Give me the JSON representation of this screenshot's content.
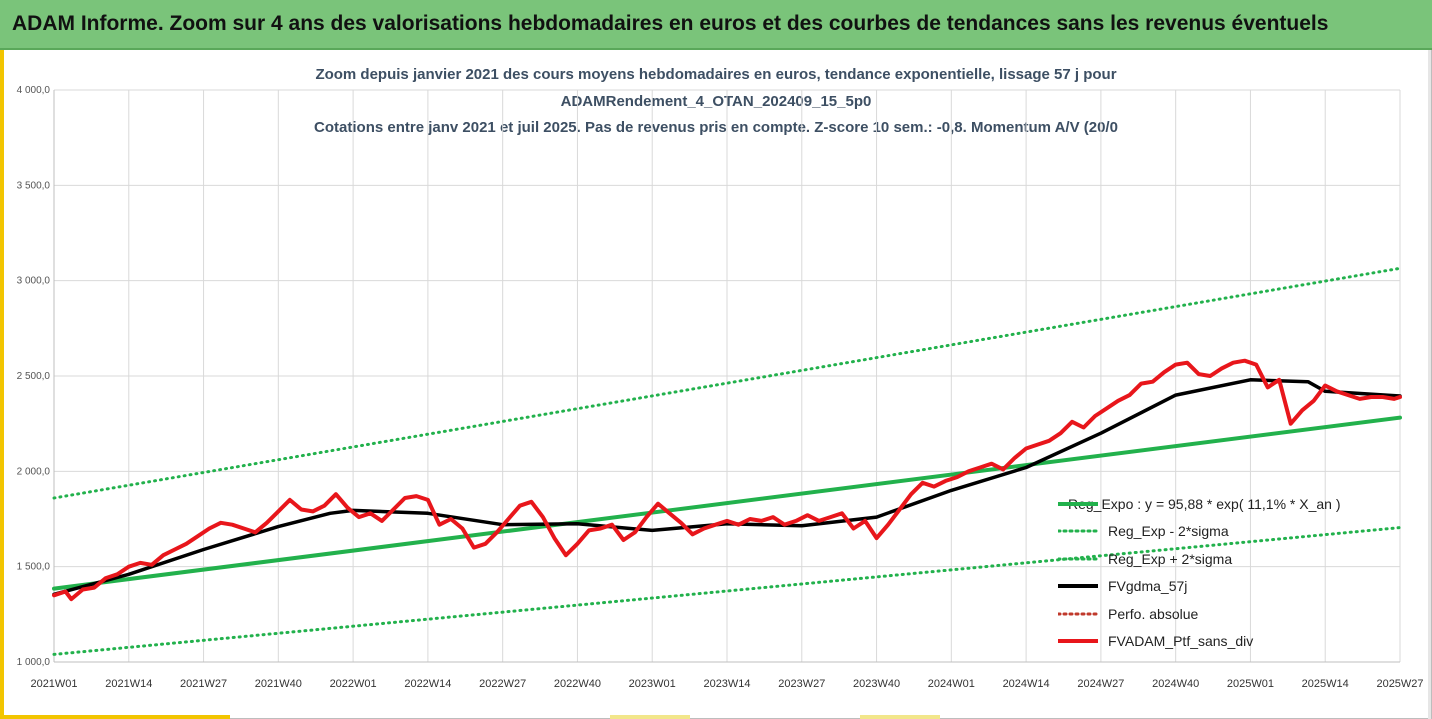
{
  "header": {
    "title": "ADAM Informe. Zoom sur 4 ans des valorisations hebdomadaires en euros et des courbes de tendances sans les revenus éventuels"
  },
  "colors": {
    "header_bg": "#7ac47a",
    "regression": "#22b14c",
    "smoothing": "#000000",
    "portfolio": "#e8161b",
    "perf_absolue": "#c0392b",
    "accent": "#f2c500"
  },
  "chart_data": {
    "type": "line",
    "title_lines": [
      "Zoom depuis janvier 2021 des cours moyens hebdomadaires  en euros, tendance exponentielle, lissage 57 j pour",
      "ADAMRendement_4_OTAN_202409_15_5p0",
      "Cotations entre janv 2021 et juil 2025. Pas de revenus pris en compte. Z-score 10 sem.: -0,8. Momentum  A/V (20/0"
    ],
    "xlabel": "",
    "ylabel": "",
    "ylim": [
      1000,
      4000
    ],
    "y_ticks": [
      "1 000,0",
      "1 500,0",
      "2 000,0",
      "2 500,0",
      "3 000,0",
      "3 500,0",
      "4 000,0"
    ],
    "y_tick_values": [
      1000,
      1500,
      2000,
      2500,
      3000,
      3500,
      4000
    ],
    "x_ticks": [
      "2021W01",
      "2021W14",
      "2021W27",
      "2021W40",
      "2022W01",
      "2022W14",
      "2022W27",
      "2022W40",
      "2023W01",
      "2023W14",
      "2023W27",
      "2023W40",
      "2024W01",
      "2024W14",
      "2024W27",
      "2024W40",
      "2025W01",
      "2025W14",
      "2025W27"
    ],
    "grid": true,
    "legend_position": "bottom-right",
    "x_weeks_span": [
      0,
      234
    ],
    "series": [
      {
        "name": "Reg_Expo : y = 95,88 * exp( 11,1% *  X_an )",
        "style": "solid-thick",
        "color": "#22b14c",
        "x": [
          0,
          234
        ],
        "values": [
          1385,
          2282
        ]
      },
      {
        "name": "Reg_Exp - 2*sigma",
        "style": "dotted",
        "color": "#22b14c",
        "x": [
          0,
          234
        ],
        "values": [
          1040,
          1705
        ]
      },
      {
        "name": "Reg_Exp + 2*sigma",
        "style": "dotted",
        "color": "#22b14c",
        "x": [
          0,
          234
        ],
        "values": [
          1860,
          3065
        ]
      },
      {
        "name": "FVgdma_57j",
        "style": "solid",
        "color": "#000000",
        "x": [
          0,
          13,
          26,
          39,
          48,
          52,
          65,
          78,
          91,
          104,
          117,
          130,
          143,
          156,
          169,
          182,
          195,
          208,
          218,
          221,
          234
        ],
        "values": [
          1355,
          1460,
          1590,
          1710,
          1780,
          1795,
          1780,
          1720,
          1725,
          1690,
          1725,
          1715,
          1760,
          1900,
          2020,
          2200,
          2400,
          2480,
          2470,
          2420,
          2395
        ]
      },
      {
        "name": "Perfo. absolue",
        "style": "dotted",
        "color": "#c0392b",
        "x": [],
        "values": []
      },
      {
        "name": "FVADAM_Ptf_sans_div",
        "style": "solid-thick",
        "color": "#e8161b",
        "x": [
          0,
          2,
          3,
          5,
          7,
          9,
          11,
          13,
          15,
          17,
          19,
          21,
          23,
          25,
          27,
          29,
          31,
          33,
          35,
          37,
          39,
          41,
          43,
          45,
          47,
          49,
          51,
          53,
          55,
          57,
          59,
          61,
          63,
          65,
          67,
          69,
          71,
          73,
          75,
          77,
          79,
          81,
          83,
          85,
          87,
          89,
          91,
          93,
          95,
          97,
          99,
          101,
          103,
          105,
          107,
          109,
          111,
          113,
          115,
          117,
          119,
          121,
          123,
          125,
          127,
          129,
          131,
          133,
          135,
          137,
          139,
          141,
          143,
          145,
          147,
          149,
          151,
          153,
          155,
          157,
          159,
          161,
          163,
          165,
          167,
          169,
          171,
          173,
          175,
          177,
          179,
          181,
          183,
          185,
          187,
          189,
          191,
          193,
          195,
          197,
          199,
          201,
          203,
          205,
          207,
          209,
          211,
          213,
          215,
          217,
          219,
          221,
          223,
          225,
          227,
          229,
          231,
          233,
          234
        ],
        "values": [
          1350,
          1370,
          1330,
          1380,
          1390,
          1440,
          1460,
          1500,
          1520,
          1510,
          1560,
          1590,
          1620,
          1660,
          1700,
          1730,
          1720,
          1700,
          1680,
          1730,
          1790,
          1850,
          1800,
          1790,
          1820,
          1880,
          1810,
          1760,
          1780,
          1740,
          1800,
          1860,
          1870,
          1850,
          1720,
          1750,
          1700,
          1600,
          1620,
          1680,
          1750,
          1820,
          1840,
          1760,
          1650,
          1560,
          1620,
          1690,
          1700,
          1720,
          1640,
          1680,
          1760,
          1830,
          1780,
          1730,
          1670,
          1700,
          1720,
          1740,
          1720,
          1750,
          1740,
          1760,
          1720,
          1740,
          1770,
          1740,
          1760,
          1780,
          1700,
          1740,
          1650,
          1720,
          1800,
          1880,
          1940,
          1920,
          1950,
          1970,
          2000,
          2020,
          2040,
          2010,
          2070,
          2120,
          2140,
          2160,
          2200,
          2260,
          2230,
          2290,
          2330,
          2370,
          2400,
          2460,
          2470,
          2520,
          2560,
          2570,
          2510,
          2500,
          2540,
          2570,
          2580,
          2560,
          2440,
          2480,
          2250,
          2320,
          2370,
          2450,
          2420,
          2400,
          2380,
          2390,
          2390,
          2380,
          2390
        ]
      }
    ]
  },
  "legend": {
    "items": [
      "Reg_Expo : y = 95,88 * exp( 11,1% *  X_an )",
      "Reg_Exp - 2*sigma",
      "Reg_Exp + 2*sigma",
      "FVgdma_57j",
      "Perfo. absolue",
      "FVADAM_Ptf_sans_div"
    ]
  }
}
